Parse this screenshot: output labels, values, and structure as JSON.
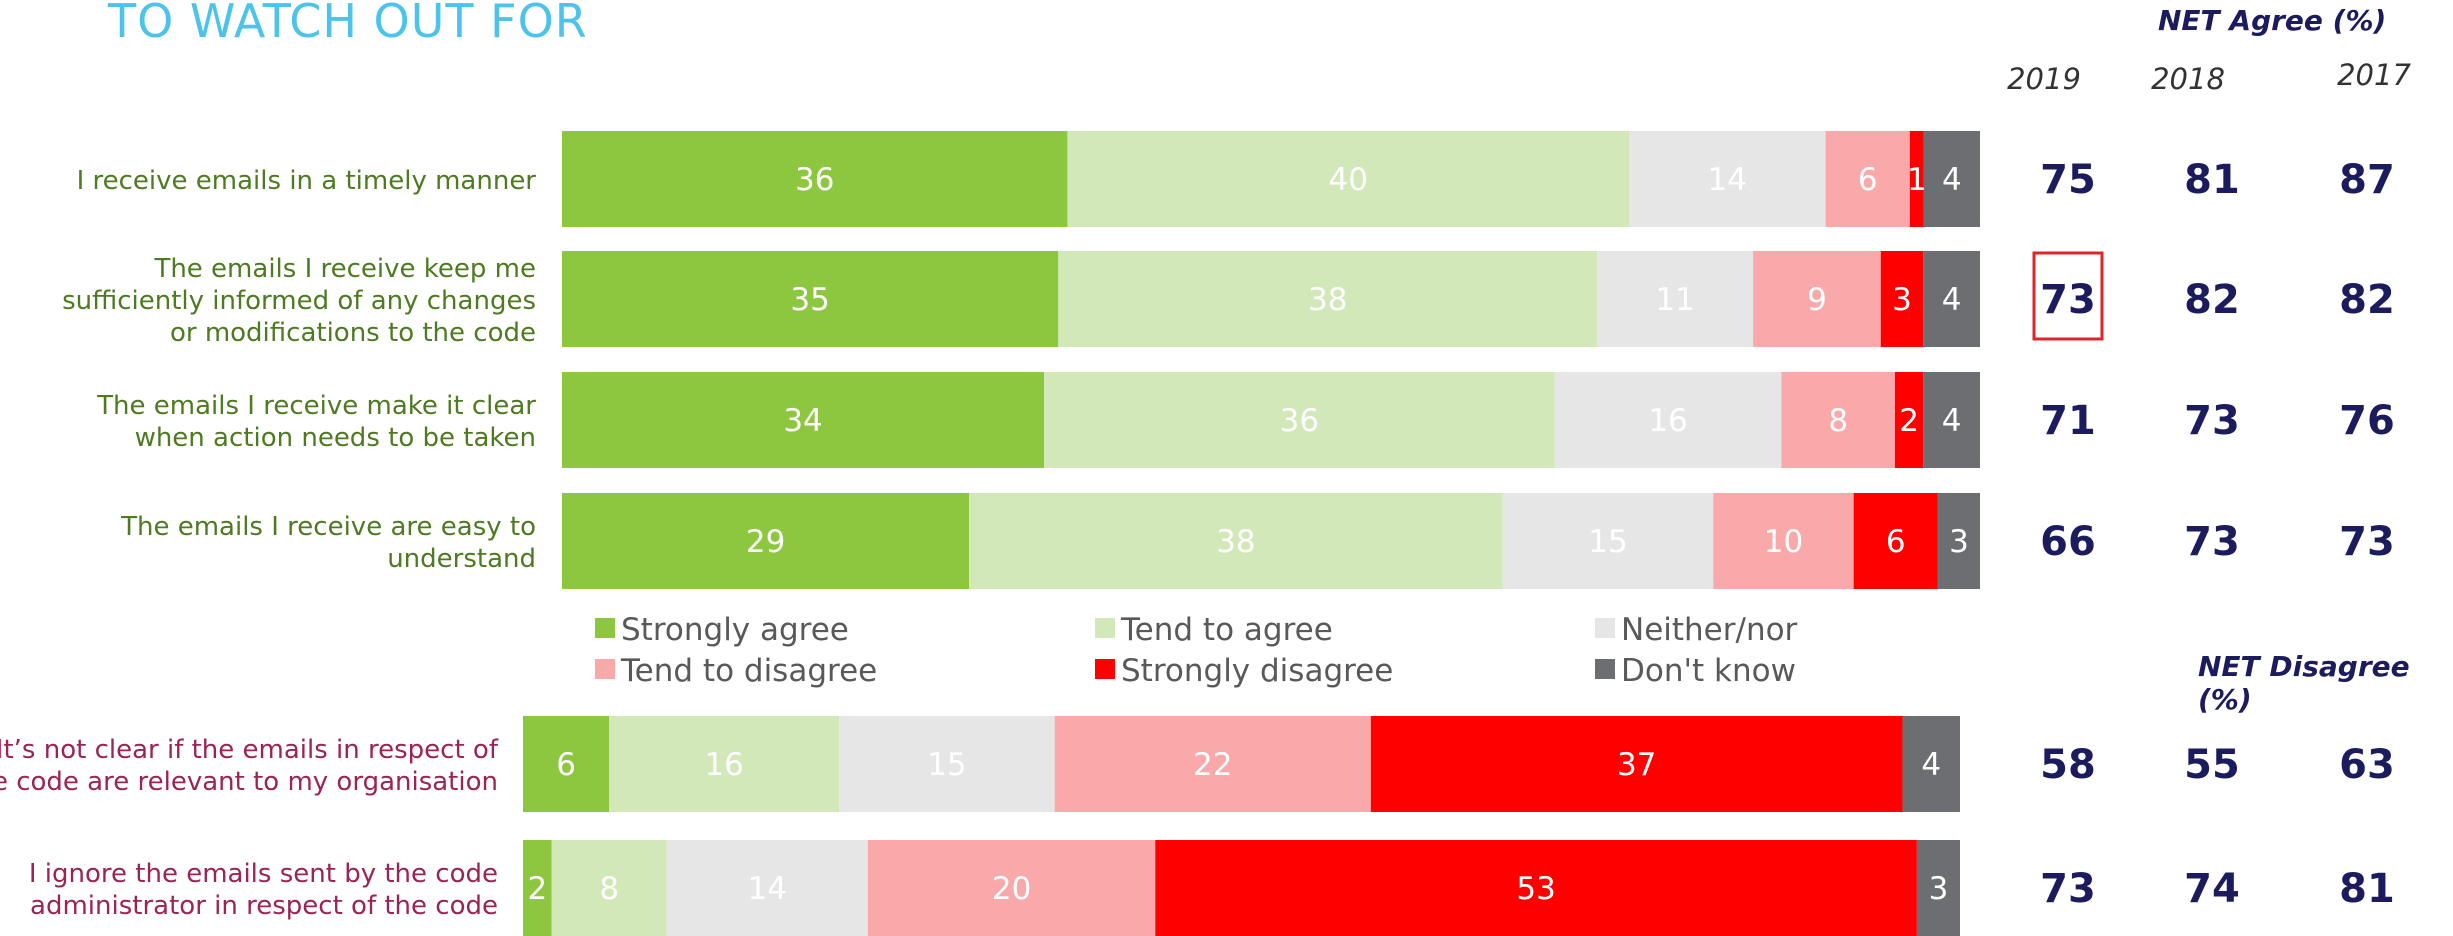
{
  "title": "TO WATCH OUT FOR",
  "net_agree_header": "NET Agree (%)",
  "net_disagree_header": "NET Disagree (%)",
  "years": [
    "2019",
    "2018",
    "2017"
  ],
  "colors": {
    "strongly_agree": "#8dc63f",
    "tend_to_agree": "#d2e8b8",
    "neither_nor": "#e6e6e6",
    "tend_to_disagree": "#f9a9aa",
    "strongly_disagree": "#ff0000",
    "dont_know": "#6d6e71",
    "agree_label": "#4e7a21",
    "disagree_label": "#9b2355",
    "net_text": "#1b1b5e",
    "highlight": "#e0242b"
  },
  "chart_data": {
    "type": "bar",
    "orientation": "horizontal",
    "stacked": true,
    "series_names": [
      "Strongly agree",
      "Tend to agree",
      "Neither/nor",
      "Tend to disagree",
      "Strongly disagree",
      "Don't know"
    ],
    "legend": [
      "Strongly agree",
      "Tend to agree",
      "Neither/nor",
      "Tend to disagree",
      "Strongly disagree",
      "Don't know"
    ],
    "groups": [
      {
        "net_header": "NET Agree (%)",
        "rows": [
          {
            "label": "I receive emails in a timely manner",
            "values": [
              36,
              40,
              14,
              6,
              1,
              4
            ],
            "net": [
              75,
              81,
              87
            ]
          },
          {
            "label": "The emails I receive keep me sufficiently informed of any changes or modifications to the code",
            "values": [
              35,
              38,
              11,
              9,
              3,
              4
            ],
            "net": [
              73,
              82,
              82
            ],
            "highlight_net": 0
          },
          {
            "label": "The emails I receive make it clear when action needs to be taken",
            "values": [
              34,
              36,
              16,
              8,
              2,
              4
            ],
            "net": [
              71,
              73,
              76
            ]
          },
          {
            "label": "The emails I receive are easy to understand",
            "values": [
              29,
              38,
              15,
              10,
              6,
              3
            ],
            "net": [
              66,
              73,
              73
            ]
          }
        ]
      },
      {
        "net_header": "NET Disagree (%)",
        "rows": [
          {
            "label": "It’s not clear if the emails in respect of the code are relevant to my organisation",
            "values": [
              6,
              16,
              15,
              22,
              37,
              4
            ],
            "net": [
              58,
              55,
              63
            ]
          },
          {
            "label": "I ignore the emails sent by the code administrator in respect of the code",
            "values": [
              2,
              8,
              14,
              20,
              53,
              3
            ],
            "net": [
              73,
              74,
              81
            ]
          }
        ]
      }
    ]
  }
}
